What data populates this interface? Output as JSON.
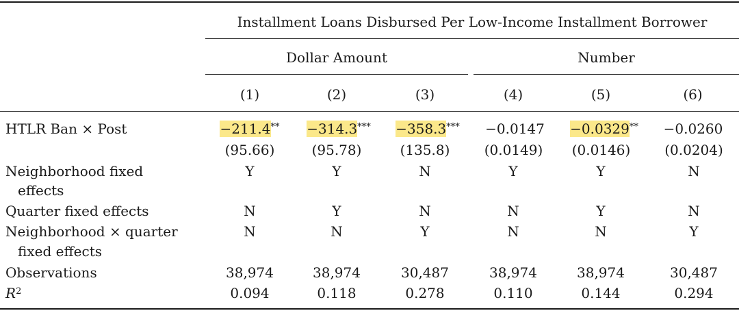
{
  "header": {
    "super_title": "Installment Loans Disbursed Per Low-Income Installment Borrower",
    "group_left": "Dollar Amount",
    "group_right": "Number",
    "columns": [
      "(1)",
      "(2)",
      "(3)",
      "(4)",
      "(5)",
      "(6)"
    ]
  },
  "rows": {
    "htlr": {
      "label": "HTLR Ban × Post",
      "coef": [
        {
          "value": "−211.4",
          "stars": "**",
          "highlight": true
        },
        {
          "value": "−314.3",
          "stars": "***",
          "highlight": true
        },
        {
          "value": "−358.3",
          "stars": "***",
          "highlight": true
        },
        {
          "value": "−0.0147",
          "stars": "",
          "highlight": false
        },
        {
          "value": "−0.0329",
          "stars": "**",
          "highlight": true
        },
        {
          "value": "−0.0260",
          "stars": "",
          "highlight": false
        }
      ],
      "se": [
        "(95.66)",
        "(95.78)",
        "(135.8)",
        "(0.0149)",
        "(0.0146)",
        "(0.0204)"
      ]
    },
    "neigh_fe": {
      "label_line1": "Neighborhood fixed",
      "label_line2": "effects",
      "values": [
        "Y",
        "Y",
        "N",
        "Y",
        "Y",
        "N"
      ]
    },
    "quarter_fe": {
      "label": "Quarter fixed effects",
      "values": [
        "N",
        "Y",
        "N",
        "N",
        "Y",
        "N"
      ]
    },
    "nq_fe": {
      "label_line1": "Neighborhood × quarter",
      "label_line2": "fixed effects",
      "values": [
        "N",
        "N",
        "Y",
        "N",
        "N",
        "Y"
      ]
    },
    "observations": {
      "label": "Observations",
      "values": [
        "38,974",
        "38,974",
        "30,487",
        "38,974",
        "38,974",
        "30,487"
      ]
    },
    "r2": {
      "label_base": "R",
      "label_sup": "2",
      "values": [
        "0.094",
        "0.118",
        "0.278",
        "0.110",
        "0.144",
        "0.294"
      ]
    }
  },
  "colors": {
    "highlight": "#fbe88a",
    "text": "#1a1a1a"
  }
}
